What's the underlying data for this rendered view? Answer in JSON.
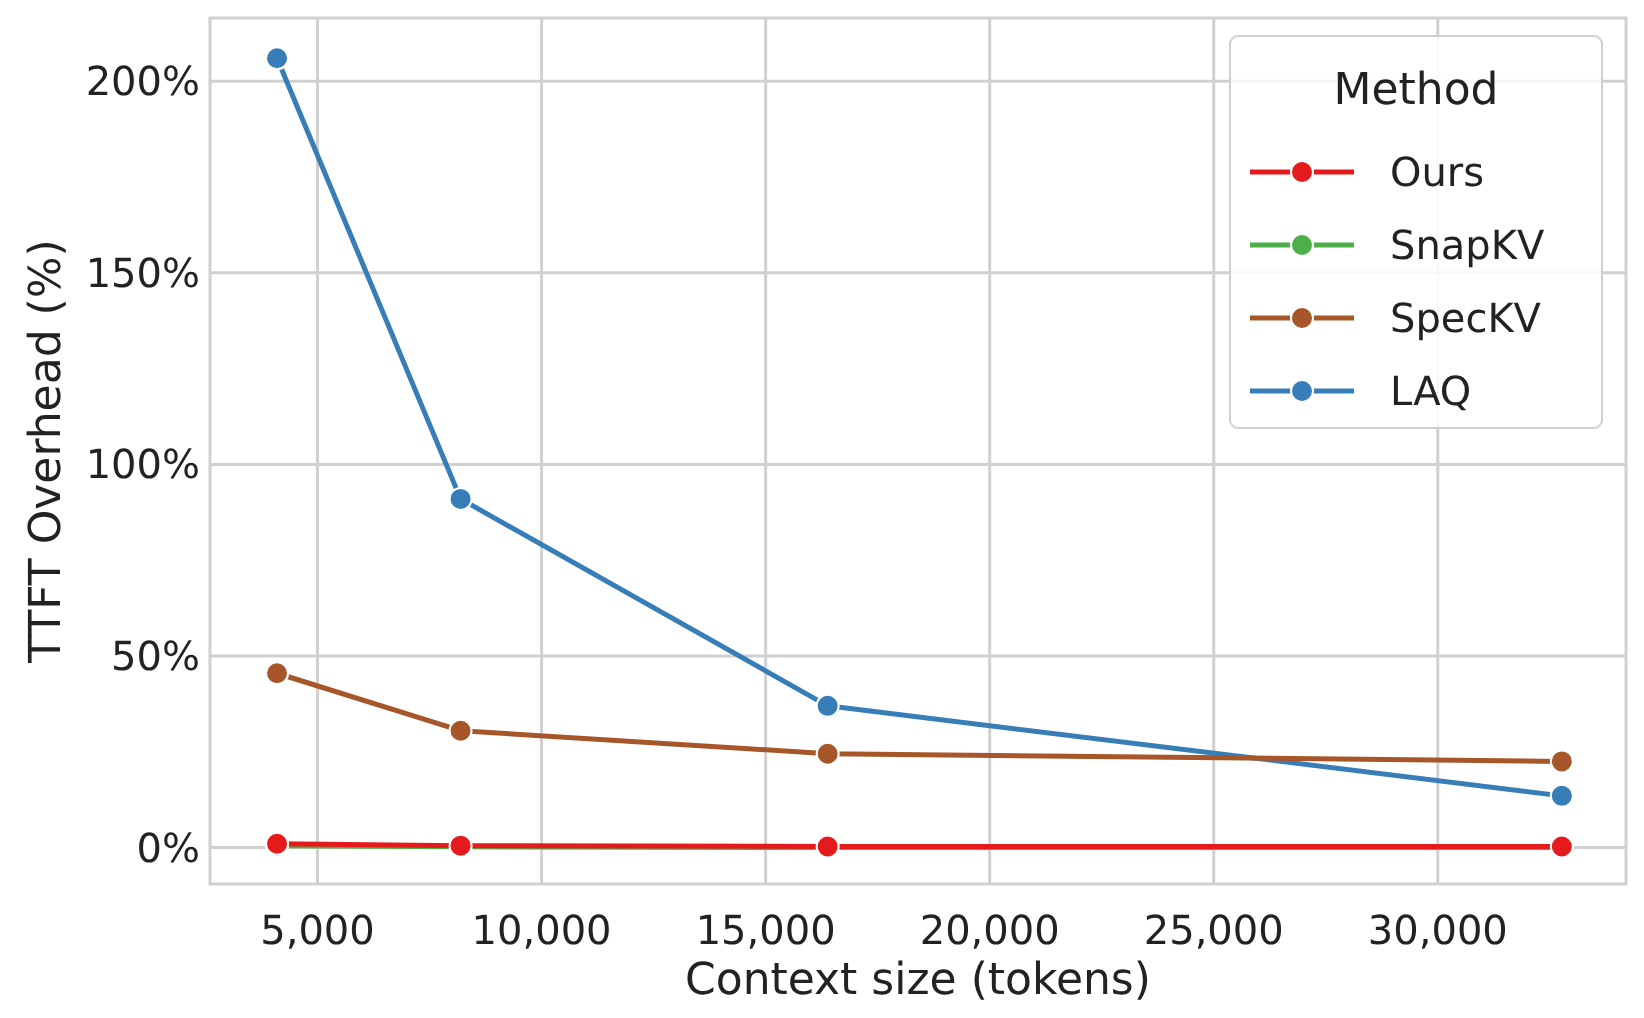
{
  "chart_data": {
    "type": "line",
    "xlabel": "Context size (tokens)",
    "ylabel": "TTFT Overhead (%)",
    "legend_title": "Method",
    "x": [
      4096,
      8192,
      16384,
      32768
    ],
    "series": [
      {
        "name": "Ours",
        "color": "#e41a1c",
        "values": [
          1,
          0.5,
          0.3,
          0.3
        ]
      },
      {
        "name": "SnapKV",
        "color": "#4daf4a",
        "values": [
          0.5,
          0.2,
          0,
          0
        ]
      },
      {
        "name": "SpecKV",
        "color": "#a65628",
        "values": [
          45.5,
          30.5,
          24.5,
          22.5
        ]
      },
      {
        "name": "LAQ",
        "color": "#377eb8",
        "values": [
          206,
          91,
          37,
          13.5
        ]
      }
    ],
    "xlim": [
      2600,
      34200
    ],
    "ylim": [
      -9.5,
      216.5
    ],
    "xticks": [
      {
        "value": 5000,
        "label": "5,000"
      },
      {
        "value": 10000,
        "label": "10,000"
      },
      {
        "value": 15000,
        "label": "15,000"
      },
      {
        "value": 20000,
        "label": "20,000"
      },
      {
        "value": 25000,
        "label": "25,000"
      },
      {
        "value": 30000,
        "label": "30,000"
      }
    ],
    "yticks": [
      {
        "value": 0,
        "label": "0%"
      },
      {
        "value": 50,
        "label": "50%"
      },
      {
        "value": 100,
        "label": "100%"
      },
      {
        "value": 150,
        "label": "150%"
      },
      {
        "value": 200,
        "label": "200%"
      }
    ],
    "grid": true,
    "legend": "top right",
    "marker": "circle",
    "line_style": "solid"
  }
}
